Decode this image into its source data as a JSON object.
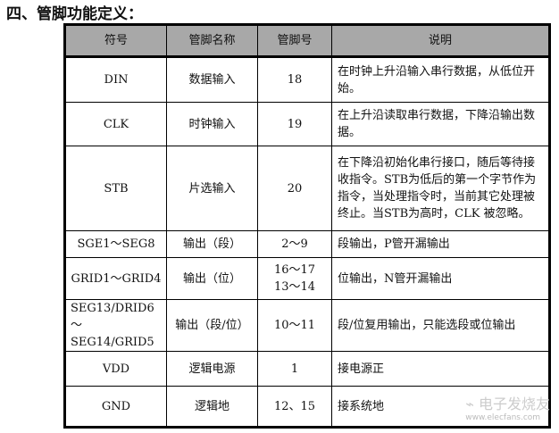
{
  "heading": "四、管脚功能定义：",
  "table": {
    "headers": [
      "符号",
      "管脚名称",
      "管脚号",
      "说明"
    ],
    "rows": [
      {
        "symbol": "DIN",
        "name": "数据输入",
        "pin": "18",
        "desc": "在时钟上升沿输入串行数据，从低位开始。"
      },
      {
        "symbol": "CLK",
        "name": "时钟输入",
        "pin": "19",
        "desc": "在上升沿读取串行数据，下降沿输出数据。"
      },
      {
        "symbol": "STB",
        "name": "片选输入",
        "pin": "20",
        "desc": "在下降沿初始化串行接口，随后等待接收指令。STB为低后的第一个字节作为指令，当处理指令时，当前其它处理被终止。当STB为高时，CLK 被忽略。"
      },
      {
        "symbol": "SGE1～SEG8",
        "name": "输出（段）",
        "pin": "2～9",
        "desc": "段输出，P管开漏输出"
      },
      {
        "symbol": "GRID1～GRID4",
        "name": "输出（位）",
        "pin": "16～17\n13～14",
        "desc": "位输出，N管开漏输出"
      },
      {
        "symbol": "SEG13/DRID6 ～SEG14/GRID5",
        "name": "输出（段/位）",
        "pin": "10～11",
        "desc": "段/位复用输出，只能选段或位输出"
      },
      {
        "symbol": "VDD",
        "name": "逻辑电源",
        "pin": "1",
        "desc": "接电源正"
      },
      {
        "symbol": "GND",
        "name": "逻辑地",
        "pin": "12、15",
        "desc": "接系统地"
      }
    ]
  },
  "watermark": {
    "logo_text": "电子发烧友",
    "url_text": "www.elecfans.com"
  }
}
